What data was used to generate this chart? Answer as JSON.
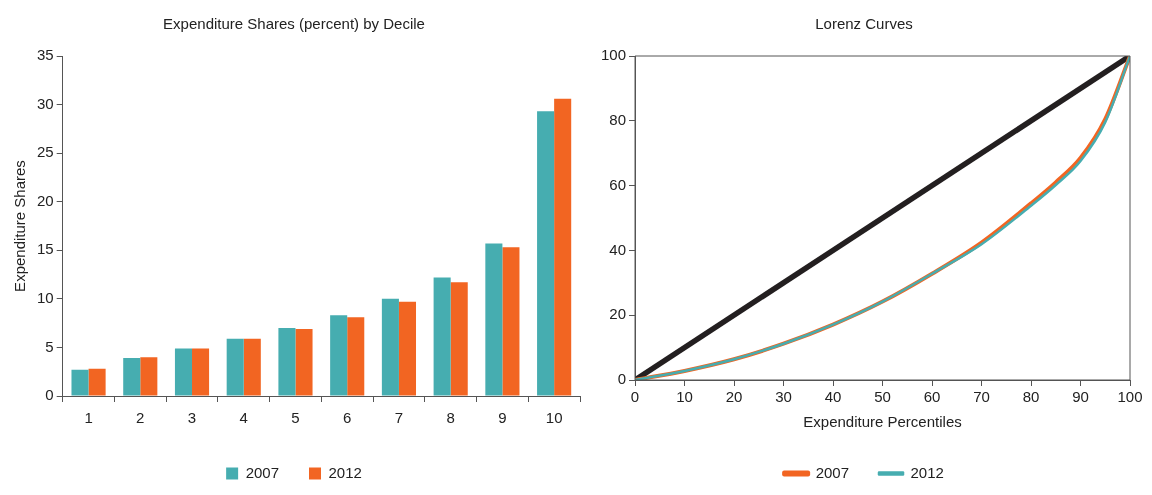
{
  "chart_data": [
    {
      "type": "bar",
      "title": "Expenditure Shares (percent) by Decile",
      "ylabel": "Expenditure Shares",
      "categories": [
        "1",
        "2",
        "3",
        "4",
        "5",
        "6",
        "7",
        "8",
        "9",
        "10"
      ],
      "series": [
        {
          "name": "2007",
          "color": "#46adb0",
          "values": [
            2.7,
            3.9,
            4.9,
            5.9,
            7.0,
            8.3,
            10.0,
            12.2,
            15.7,
            29.3
          ]
        },
        {
          "name": "2012",
          "color": "#f26522",
          "values": [
            2.8,
            4.0,
            4.9,
            5.9,
            6.9,
            8.1,
            9.7,
            11.7,
            15.3,
            30.6
          ]
        }
      ],
      "ylim": [
        0,
        35
      ],
      "yticks": [
        0,
        5,
        10,
        15,
        20,
        25,
        30,
        35
      ],
      "grid": false,
      "legend": "bottom"
    },
    {
      "type": "line",
      "title": "Lorenz Curves",
      "xlabel": "Expenditure Percentiles",
      "series": [
        {
          "color": "#231f20",
          "x": [
            0,
            100
          ],
          "values": [
            0,
            100
          ]
        },
        {
          "name": "2007",
          "color": "#f26522",
          "x": [
            0,
            10,
            20,
            30,
            40,
            50,
            60,
            70,
            80,
            85,
            90,
            95,
            100
          ],
          "values": [
            0,
            2.8,
            6.4,
            11.2,
            17.1,
            24.2,
            32.8,
            42.4,
            54.5,
            61,
            68.5,
            80.5,
            100
          ]
        },
        {
          "name": "2012",
          "color": "#46adb0",
          "x": [
            0,
            10,
            20,
            30,
            40,
            50,
            60,
            70,
            80,
            85,
            90,
            95,
            100
          ],
          "values": [
            0,
            2.8,
            6.4,
            11.2,
            17.1,
            24.2,
            32.8,
            41.9,
            53.8,
            60.2,
            67.6,
            79.6,
            100
          ]
        }
      ],
      "xlim": [
        0,
        100
      ],
      "xticks": [
        0,
        10,
        20,
        30,
        40,
        50,
        60,
        70,
        80,
        90,
        100
      ],
      "ylim": [
        0,
        100
      ],
      "yticks": [
        0,
        20,
        40,
        60,
        80,
        100
      ],
      "grid": false,
      "legend": "bottom",
      "marker": "none",
      "line_style": "solid"
    }
  ]
}
